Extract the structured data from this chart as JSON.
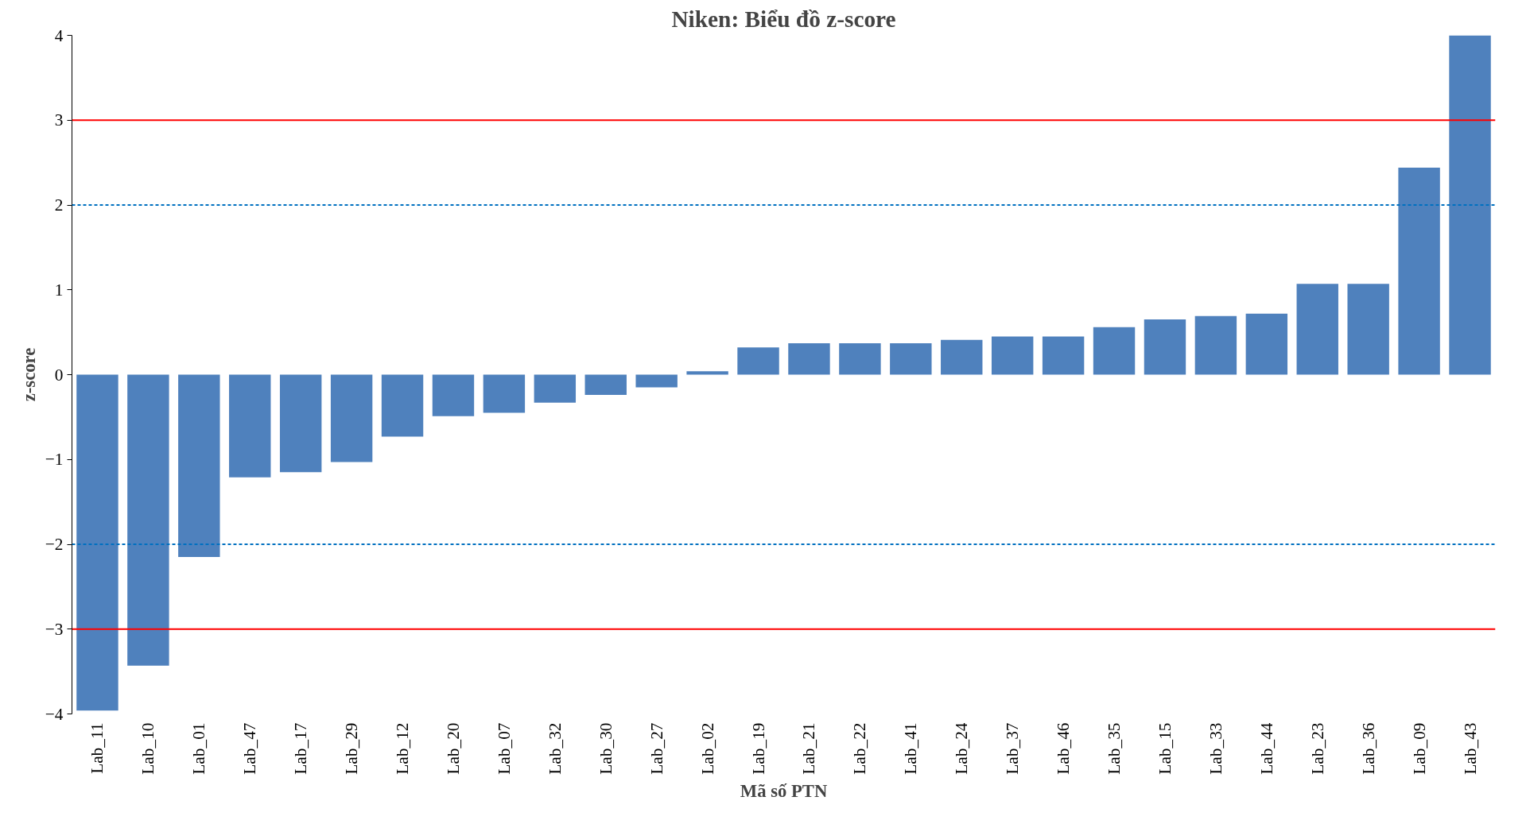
{
  "chart_data": {
    "type": "bar",
    "title": "Niken: Biểu đồ z-score",
    "xlabel": "Mã số PTN",
    "ylabel": "z-score",
    "categories": [
      "Lab_11",
      "Lab_10",
      "Lab_01",
      "Lab_47",
      "Lab_17",
      "Lab_29",
      "Lab_12",
      "Lab_20",
      "Lab_07",
      "Lab_32",
      "Lab_30",
      "Lab_27",
      "Lab_02",
      "Lab_19",
      "Lab_21",
      "Lab_22",
      "Lab_41",
      "Lab_24",
      "Lab_37",
      "Lab_46",
      "Lab_35",
      "Lab_15",
      "Lab_33",
      "Lab_44",
      "Lab_23",
      "Lab_36",
      "Lab_09",
      "Lab_43"
    ],
    "values": [
      -3.96,
      -3.43,
      -2.15,
      -1.21,
      -1.15,
      -1.03,
      -0.73,
      -0.49,
      -0.45,
      -0.33,
      -0.24,
      -0.15,
      0.04,
      0.32,
      0.37,
      0.37,
      0.37,
      0.41,
      0.45,
      0.45,
      0.56,
      0.65,
      0.69,
      0.72,
      1.07,
      1.07,
      2.44,
      4.0
    ],
    "color": "#4f81bd",
    "ylim": [
      -4,
      4
    ],
    "yticks": [
      -4,
      -3,
      -2,
      -1,
      0,
      1,
      2,
      3,
      4
    ],
    "grid": false,
    "ref_lines": [
      {
        "axis": "y",
        "value": 3,
        "color": "#ff0000",
        "line_style": "solid"
      },
      {
        "axis": "y",
        "value": 2,
        "color": "#0070c0",
        "line_style": "dashed"
      },
      {
        "axis": "y",
        "value": -2,
        "color": "#0070c0",
        "line_style": "dashed"
      },
      {
        "axis": "y",
        "value": -3,
        "color": "#ff0000",
        "line_style": "solid"
      }
    ]
  }
}
